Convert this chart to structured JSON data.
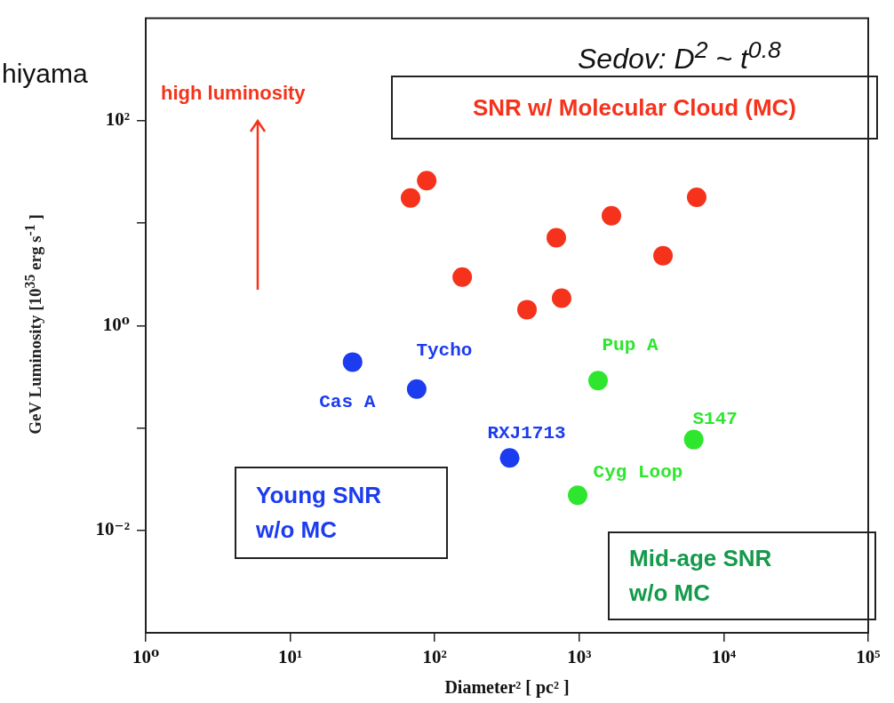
{
  "chart_data": {
    "type": "scatter",
    "xlabel": "Diameter² [ pc² ]",
    "ylabel": "GeV Luminosity [10$^{35}$ erg s$^{-1}$ ]",
    "log": "xy",
    "xlim": [
      1,
      100000
    ],
    "ylim": [
      0.001,
      1000
    ],
    "xticks": [
      {
        "value": 1,
        "label": "10⁰"
      },
      {
        "value": 10,
        "label": "10¹"
      },
      {
        "value": 100,
        "label": "10²"
      },
      {
        "value": 1000,
        "label": "10³"
      },
      {
        "value": 10000,
        "label": "10⁴"
      },
      {
        "value": 100000,
        "label": "10⁵"
      }
    ],
    "yticks": [
      {
        "value": 0.01,
        "label": "10⁻²"
      },
      {
        "value": 0.1,
        "label": null
      },
      {
        "value": 1,
        "label": "10⁰"
      },
      {
        "value": 10,
        "label": null
      },
      {
        "value": 100,
        "label": "10²"
      }
    ],
    "marker": "circle",
    "series": [
      {
        "color": "#f5331c",
        "x": [
          68,
          88,
          155,
          435,
          755,
          694,
          1670,
          3800,
          6500
        ],
        "values": [
          17.6,
          26,
          2.97,
          1.43,
          1.85,
          7.2,
          11.8,
          4.8,
          17.9
        ]
      },
      {
        "color": "#1c3cf0",
        "x": [
          27,
          75,
          330
        ],
        "values": [
          0.44,
          0.24,
          0.051
        ]
      },
      {
        "color": "#2ee62e",
        "x": [
          1350,
          6200,
          975
        ],
        "values": [
          0.29,
          0.077,
          0.022
        ]
      }
    ],
    "annotations": [
      {
        "text": "Cas A",
        "x": 27,
        "y": 0.44
      },
      {
        "text": "Tycho",
        "x": 75,
        "y": 0.24
      },
      {
        "text": "RXJ1713",
        "x": 330,
        "y": 0.051
      },
      {
        "text": "Pup A",
        "x": 1350,
        "y": 0.29
      },
      {
        "text": "S147",
        "x": 6200,
        "y": 0.077
      },
      {
        "text": "Cyg Loop",
        "x": 975,
        "y": 0.022
      },
      "hiyama",
      "Sedov: D$^{2}$ ~ t$^{0.8}$",
      "high luminosity",
      "SNR w/ Molecular Cloud (MC)",
      "Young SNR w/o MC",
      "Mid-age SNR w/o MC"
    ]
  }
}
